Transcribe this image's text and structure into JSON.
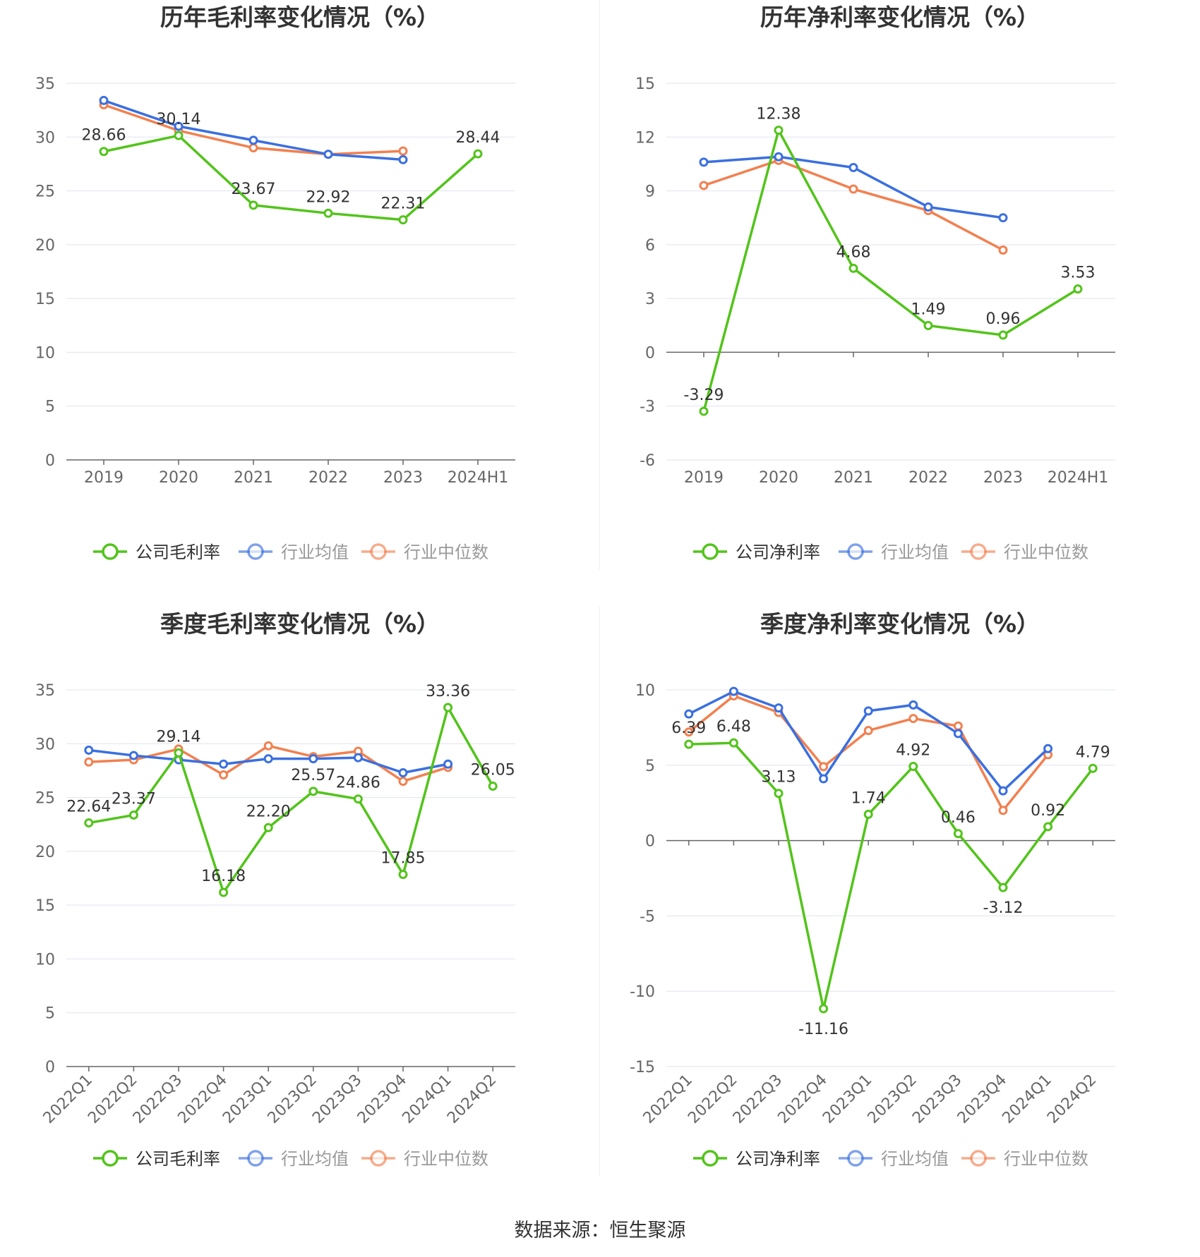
{
  "colors": {
    "company": "#52c41a",
    "avg": "#3a6fe0",
    "median": "#f28050"
  },
  "source_text": "数据来源：恒生聚源",
  "charts": [
    {
      "title": "历年毛利率变化情况（%）",
      "chart_data": {
        "type": "line",
        "categories": [
          "2019",
          "2020",
          "2021",
          "2022",
          "2023",
          "2024H1"
        ],
        "ylim": [
          0,
          35
        ],
        "yticks": [
          0,
          5,
          10,
          15,
          20,
          25,
          30,
          35
        ],
        "series": [
          {
            "name": "公司毛利率",
            "values": [
              28.66,
              30.14,
              23.67,
              22.92,
              22.31,
              28.44
            ]
          },
          {
            "name": "行业均值",
            "values": [
              33.4,
              31.0,
              29.7,
              28.4,
              27.9,
              null
            ]
          },
          {
            "name": "行业中位数",
            "values": [
              33.0,
              30.6,
              29.0,
              28.4,
              28.7,
              null
            ]
          }
        ],
        "labels": [
          "28.66",
          "30.14",
          "23.67",
          "22.92",
          "22.31",
          "28.44"
        ],
        "rotate_x": false
      }
    },
    {
      "title": "历年净利率变化情况（%）",
      "chart_data": {
        "type": "line",
        "categories": [
          "2019",
          "2020",
          "2021",
          "2022",
          "2023",
          "2024H1"
        ],
        "ylim": [
          -6,
          15
        ],
        "yticks": [
          -6,
          -3,
          0,
          3,
          6,
          9,
          12,
          15
        ],
        "series": [
          {
            "name": "公司净利率",
            "values": [
              -3.29,
              12.38,
              4.68,
              1.49,
              0.96,
              3.53
            ]
          },
          {
            "name": "行业均值",
            "values": [
              10.6,
              10.9,
              10.3,
              8.1,
              7.5,
              null
            ]
          },
          {
            "name": "行业中位数",
            "values": [
              9.3,
              10.7,
              9.1,
              7.9,
              5.7,
              null
            ]
          }
        ],
        "labels": [
          "-3.29",
          "12.38",
          "4.68",
          "1.49",
          "0.96",
          "3.53"
        ],
        "rotate_x": false
      }
    },
    {
      "title": "季度毛利率变化情况（%）",
      "chart_data": {
        "type": "line",
        "categories": [
          "2022Q1",
          "2022Q2",
          "2022Q3",
          "2022Q4",
          "2023Q1",
          "2023Q2",
          "2023Q3",
          "2023Q4",
          "2024Q1",
          "2024Q2"
        ],
        "ylim": [
          0,
          35
        ],
        "yticks": [
          0,
          5,
          10,
          15,
          20,
          25,
          30,
          35
        ],
        "series": [
          {
            "name": "公司毛利率",
            "values": [
              22.64,
              23.37,
              29.14,
              16.18,
              22.2,
              25.57,
              24.86,
              17.85,
              33.36,
              26.05
            ]
          },
          {
            "name": "行业均值",
            "values": [
              29.4,
              28.9,
              28.5,
              28.1,
              28.6,
              28.6,
              28.7,
              27.3,
              28.1,
              null
            ]
          },
          {
            "name": "行业中位数",
            "values": [
              28.3,
              28.5,
              29.5,
              27.1,
              29.8,
              28.8,
              29.3,
              26.5,
              27.8,
              null
            ]
          }
        ],
        "labels": [
          "22.64",
          "23.37",
          "29.14",
          "16.18",
          "22.20",
          "25.57",
          "24.86",
          "17.85",
          "33.36",
          "26.05"
        ],
        "rotate_x": true
      }
    },
    {
      "title": "季度净利率变化情况（%）",
      "chart_data": {
        "type": "line",
        "categories": [
          "2022Q1",
          "2022Q2",
          "2022Q3",
          "2022Q4",
          "2023Q1",
          "2023Q2",
          "2023Q3",
          "2023Q4",
          "2024Q1",
          "2024Q2"
        ],
        "ylim": [
          -15,
          10
        ],
        "yticks": [
          -15,
          -10,
          -5,
          0,
          5,
          10
        ],
        "series": [
          {
            "name": "公司净利率",
            "values": [
              6.39,
              6.48,
              3.13,
              -11.16,
              1.74,
              4.92,
              0.46,
              -3.12,
              0.92,
              4.79
            ]
          },
          {
            "name": "行业均值",
            "values": [
              8.4,
              9.9,
              8.8,
              4.1,
              8.6,
              9.0,
              7.1,
              3.3,
              6.1,
              null
            ]
          },
          {
            "name": "行业中位数",
            "values": [
              7.2,
              9.6,
              8.5,
              4.9,
              7.3,
              8.1,
              7.6,
              2.0,
              5.7,
              null
            ]
          }
        ],
        "labels": [
          "6.39",
          "6.48",
          "3.13",
          "-11.16",
          "1.74",
          "4.92",
          "0.46",
          "-3.12",
          "0.92",
          "4.79"
        ],
        "rotate_x": true
      }
    }
  ]
}
